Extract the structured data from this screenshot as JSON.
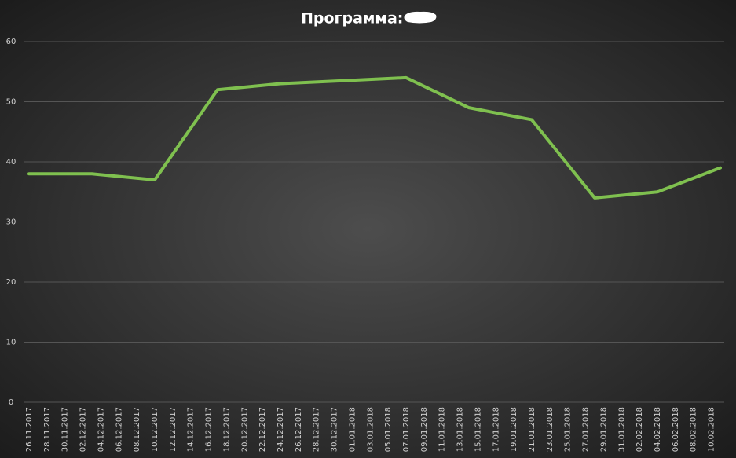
{
  "chart_data": {
    "type": "line",
    "title": "Программа:",
    "x": [
      "26.11.2017",
      "03.12.2017",
      "10.12.2017",
      "17.12.2017",
      "24.12.2017",
      "31.12.2017",
      "07.01.2018",
      "14.01.2018",
      "21.01.2018",
      "28.01.2018",
      "04.02.2018",
      "11.02.2018"
    ],
    "series": [
      {
        "color": "#7fc04f",
        "values": [
          38,
          38,
          37,
          52,
          53,
          53.5,
          54,
          49,
          47,
          34,
          35,
          39
        ]
      }
    ],
    "xlim": [
      "26.11.2017",
      "11.02.2018"
    ],
    "xticks": [
      "26.11.2017",
      "28.11.2017",
      "30.11.2017",
      "02.12.2017",
      "04.12.2017",
      "06.12.2017",
      "08.12.2017",
      "10.12.2017",
      "12.12.2017",
      "14.12.2017",
      "16.12.2017",
      "18.12.2017",
      "20.12.2017",
      "22.12.2017",
      "24.12.2017",
      "26.12.2017",
      "28.12.2017",
      "30.12.2017",
      "01.01.2018",
      "03.01.2018",
      "05.01.2018",
      "07.01.2018",
      "09.01.2018",
      "11.01.2018",
      "13.01.2018",
      "15.01.2018",
      "17.01.2018",
      "19.01.2018",
      "21.01.2018",
      "23.01.2018",
      "25.01.2018",
      "27.01.2018",
      "29.01.2018",
      "31.01.2018",
      "02.02.2018",
      "04.02.2018",
      "06.02.2018",
      "08.02.2018",
      "10.02.2018"
    ],
    "ylim": [
      0,
      60
    ],
    "yticks": [
      0,
      10,
      20,
      30,
      40,
      50,
      60
    ],
    "grid": true
  }
}
